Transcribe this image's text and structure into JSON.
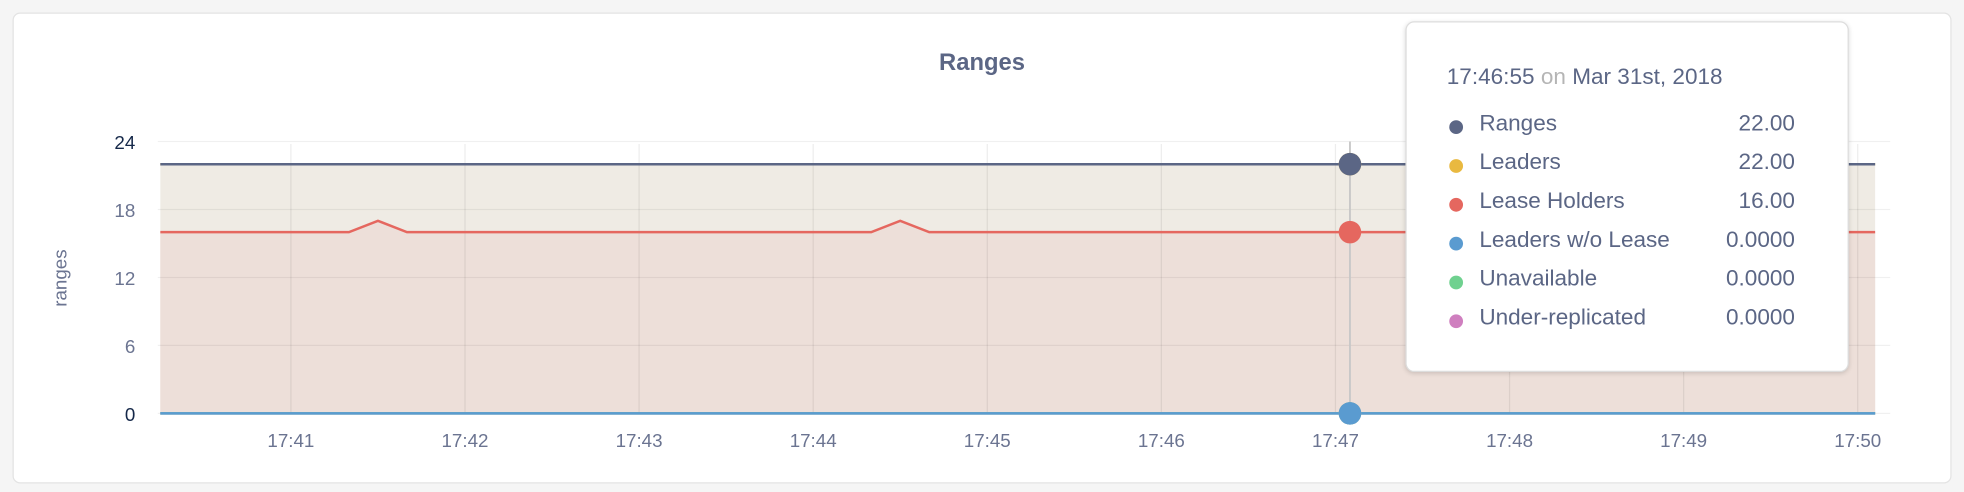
{
  "chart_data": {
    "type": "area",
    "title": "Ranges",
    "ylabel": "ranges",
    "xlabel": "",
    "ylim": [
      0,
      24
    ],
    "yticks": [
      "0",
      "6",
      "12",
      "18",
      "24"
    ],
    "xlim": [
      "17:40:15",
      "17:50:06"
    ],
    "xticks": [
      "17:41",
      "17:42",
      "17:43",
      "17:44",
      "17:45",
      "17:46",
      "17:47",
      "17:48",
      "17:49",
      "17:50"
    ],
    "grid": true,
    "series": [
      {
        "name": "Ranges",
        "color": "#5b6685",
        "points": [
          [
            "17:40:15",
            22
          ],
          [
            "17:50:06",
            22
          ]
        ]
      },
      {
        "name": "Leaders",
        "color": "#e9b940",
        "fill": "#efebe4",
        "points": [
          [
            "17:40:15",
            22
          ],
          [
            "17:50:06",
            22
          ]
        ]
      },
      {
        "name": "Lease Holders",
        "color": "#e5675f",
        "fill": "#eddfd9",
        "points": [
          [
            "17:40:15",
            16
          ],
          [
            "17:41:20",
            16
          ],
          [
            "17:41:30",
            17
          ],
          [
            "17:41:40",
            16
          ],
          [
            "17:44:20",
            16
          ],
          [
            "17:44:30",
            17
          ],
          [
            "17:44:40",
            16
          ],
          [
            "17:50:06",
            16
          ]
        ]
      },
      {
        "name": "Leaders w/o Lease",
        "color": "#5a9bd0",
        "points": [
          [
            "17:40:15",
            0
          ],
          [
            "17:50:06",
            0
          ]
        ]
      },
      {
        "name": "Unavailable",
        "color": "#6fd18f",
        "points": [
          [
            "17:40:15",
            0
          ],
          [
            "17:50:06",
            0
          ]
        ]
      },
      {
        "name": "Under-replicated",
        "color": "#cf7fbf",
        "points": [
          [
            "17:40:15",
            0
          ],
          [
            "17:50:06",
            0
          ]
        ]
      }
    ],
    "hover": "17:47:05"
  },
  "tooltip": {
    "time": "17:46:55",
    "on": "on",
    "date": "Mar 31st, 2018",
    "rows": [
      {
        "label": "Ranges",
        "value": "22.00",
        "color": "#5b6685"
      },
      {
        "label": "Leaders",
        "value": "22.00",
        "color": "#e9b940"
      },
      {
        "label": "Lease Holders",
        "value": "16.00",
        "color": "#e5675f"
      },
      {
        "label": "Leaders w/o Lease",
        "value": "0.0000",
        "color": "#5a9bd0"
      },
      {
        "label": "Unavailable",
        "value": "0.0000",
        "color": "#6fd18f"
      },
      {
        "label": "Under-replicated",
        "value": "0.0000",
        "color": "#cf7fbf"
      }
    ]
  }
}
